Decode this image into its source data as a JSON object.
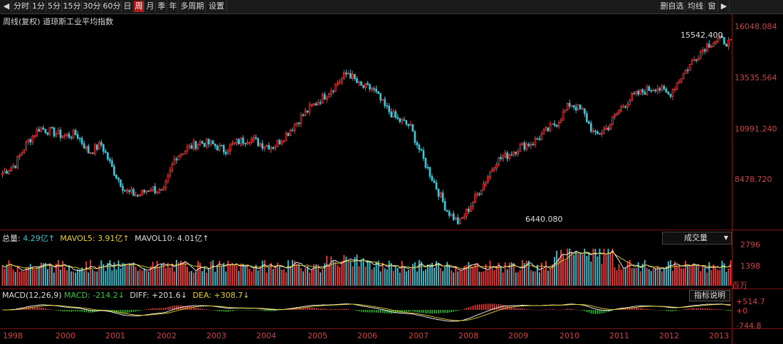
{
  "toolbar": {
    "nav_left": "◀",
    "periods": [
      "分时",
      "1分",
      "5分",
      "15分",
      "30分",
      "60分",
      "日",
      "周",
      "月",
      "季",
      "年",
      "多周期",
      "设置"
    ],
    "active_period": "周",
    "right_items": [
      "删自选",
      "均线",
      "窗"
    ],
    "nav_right": "▶"
  },
  "price_panel": {
    "title": "周线(复权)  道琼斯工业平均指数",
    "high_label": "15542.400",
    "low_label": "6440.080",
    "y_ticks": [
      "16048.084",
      "13535.564",
      "10991.240",
      "8478.720"
    ]
  },
  "volume_panel": {
    "total_label": "总量: ",
    "total_value": "4.29亿↑",
    "mavol5_label": "MAVOL5: ",
    "mavol5_value": "3.91亿↑",
    "mavol10_label": "MAVOL10: ",
    "mavol10_value": "4.01亿↑",
    "selector": "成交量",
    "y_ticks": [
      "2796",
      "1398"
    ],
    "unit": "百万"
  },
  "macd_panel": {
    "title": "MACD(12,26,9) ",
    "macd_label": "MACD: ",
    "macd_value": "-214.2↓",
    "diff_label": "DIFF: ",
    "diff_value": "+201.6↓",
    "dea_label": "DEA: ",
    "dea_value": "+308.7↓",
    "explain": "指标说明",
    "y_ticks": [
      "+514.7",
      "+0",
      "-744.8"
    ]
  },
  "x_axis": [
    "1998",
    "2000",
    "2001",
    "2002",
    "2003",
    "2004",
    "2005",
    "2006",
    "2007",
    "2008",
    "2009",
    "2010",
    "2011",
    "2012",
    "2013"
  ],
  "colors": {
    "up": "#ff3b3b",
    "down": "#3fc6d6",
    "frame": "#7a1414",
    "ma5": "#ffffff",
    "ma10": "#e6d22a",
    "diff": "#ffffff",
    "dea": "#e6d22a"
  },
  "chart_data": {
    "type": "candlestick",
    "title": "周线(复权)  道琼斯工业平均指数",
    "x_range": [
      "1998",
      "2013"
    ],
    "y_range": [
      6440.08,
      16048.084
    ],
    "closes": [
      9000,
      9400,
      10500,
      11200,
      11000,
      10800,
      10900,
      10000,
      10400,
      9100,
      8100,
      7900,
      8300,
      8000,
      9800,
      10200,
      10500,
      10400,
      10100,
      10500,
      10700,
      10400,
      10300,
      10900,
      11600,
      12200,
      12700,
      13300,
      13900,
      13200,
      13100,
      12200,
      11600,
      11300,
      9800,
      8500,
      7200,
      6550,
      7500,
      8500,
      9600,
      9900,
      10300,
      10500,
      11000,
      11500,
      12400,
      12000,
      10800,
      11200,
      12100,
      12700,
      13000,
      13200,
      12800,
      13700,
      14500,
      15200,
      15500,
      15300
    ],
    "high": 15542.4,
    "low": 6440.08
  }
}
